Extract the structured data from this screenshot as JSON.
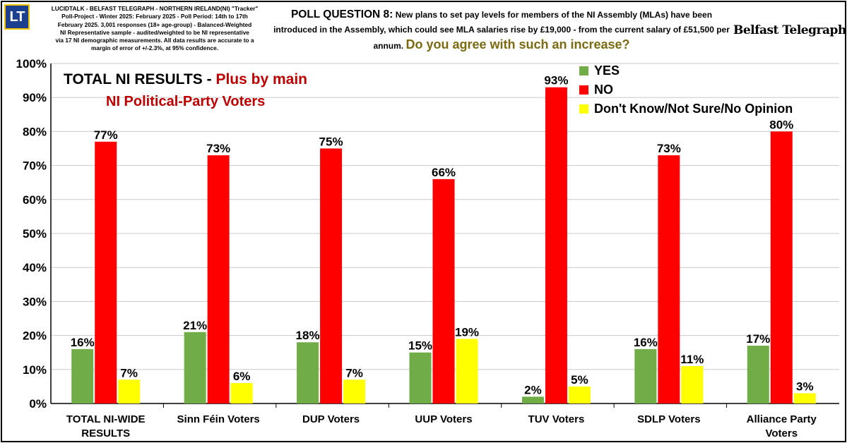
{
  "header": {
    "logo_text": "LT",
    "methodology": "LUCIDTALK - BELFAST TELEGRAPH - NORTHERN IRELAND(NI) \"Tracker\"\nPoll-Project - Winter 2025: February 2025 - Poll Period: 14th to 17th\nFebruary 2025. 3,001 responses (18+ age-group) - Balanced-Weighted\nNI Representative sample - audited/weighted to be NI representative\nvia 17 NI demographic measurements. All data results are accurate to a\nmargin of error of +/-2.3%, at 95% confidence.",
    "question_label": "POLL QUESTION 8:",
    "question_text": "New plans to set pay levels for members of the NI Assembly (MLAs) have been introduced in the Assembly, which could see MLA salaries rise by £19,000 - from the current salary of £51,500 per annum.",
    "question_ask": "Do you agree with such an increase?",
    "brand": "Belfast Telegraph"
  },
  "subtitle": {
    "part1": "TOTAL NI  RESULTS - ",
    "part2": "Plus by main",
    "line2": "NI Political-Party Voters"
  },
  "colors": {
    "yes": "#70ad47",
    "no": "#ff0000",
    "dont_know": "#ffff00",
    "subtitle_red": "#c00000",
    "question_gold": "#7b6a10"
  },
  "chart_data": {
    "type": "bar",
    "title": "TOTAL NI RESULTS - Plus by main NI Political-Party Voters",
    "xlabel": "",
    "ylabel": "",
    "ylim": [
      0,
      100
    ],
    "yticks": [
      "0%",
      "10%",
      "20%",
      "30%",
      "40%",
      "50%",
      "60%",
      "70%",
      "80%",
      "90%",
      "100%"
    ],
    "categories": [
      [
        "TOTAL NI-WIDE",
        "RESULTS"
      ],
      [
        "Sinn Féin Voters"
      ],
      [
        "DUP Voters"
      ],
      [
        "UUP Voters"
      ],
      [
        "TUV Voters"
      ],
      [
        "SDLP Voters"
      ],
      [
        "Alliance Party",
        "Voters"
      ]
    ],
    "series": [
      {
        "name": "YES",
        "color": "#70ad47",
        "values": [
          16,
          21,
          18,
          15,
          2,
          16,
          17
        ]
      },
      {
        "name": "NO",
        "color": "#ff0000",
        "values": [
          77,
          73,
          75,
          66,
          93,
          73,
          80
        ]
      },
      {
        "name": "Don't Know/Not Sure/No Opinion",
        "color": "#ffff00",
        "values": [
          7,
          6,
          7,
          19,
          5,
          11,
          3
        ]
      }
    ],
    "legend_position": "top-right"
  }
}
